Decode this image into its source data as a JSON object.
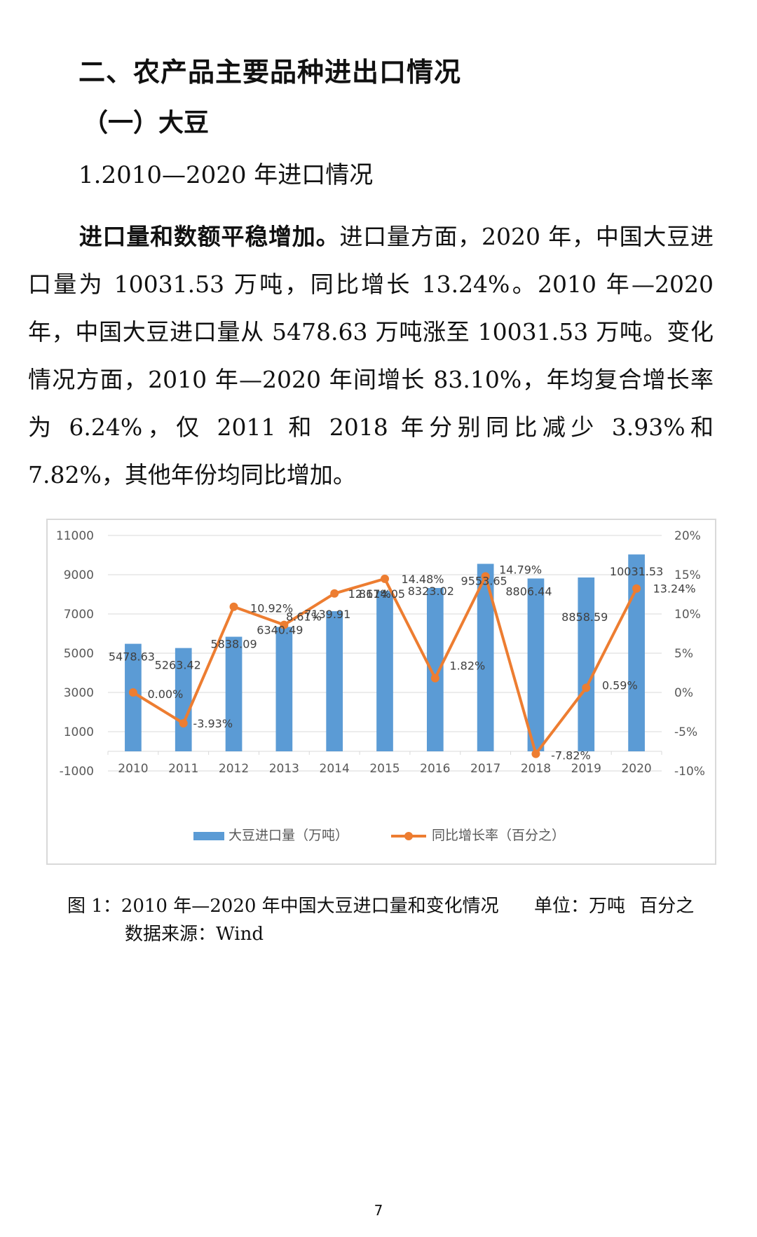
{
  "heading": "二、农产品主要品种进出口情况",
  "subheading": "（一）大豆",
  "section": "1.2010—2020 年进口情况",
  "paragraph": {
    "lead": "进口量和数额平稳增加。",
    "body": "进口量方面，2020 年，中国大豆进口量为 10031.53 万吨，同比增长 13.24%。2010 年—2020 年，中国大豆进口量从 5478.63 万吨涨至 10031.53 万吨。变化情况方面，2010 年—2020 年间增长 83.10%，年均复合增长率为 6.24%，仅 2011 和 2018 年分别同比减少 3.93%和 7.82%，其他年份均同比增加。"
  },
  "chart_data": {
    "type": "bar+line",
    "categories": [
      "2010",
      "2011",
      "2012",
      "2013",
      "2014",
      "2015",
      "2016",
      "2017",
      "2018",
      "2019",
      "2020"
    ],
    "series": [
      {
        "name": "大豆进口量（万吨）",
        "type": "bar",
        "axis": "left",
        "color": "#5b9bd5",
        "values": [
          5478.63,
          5263.42,
          5838.09,
          6340.49,
          7139.91,
          8174.05,
          8323.02,
          9553.65,
          8806.44,
          8858.59,
          10031.53
        ],
        "labels": [
          "5478.63",
          "5263.42",
          "5838.09",
          "6340.49",
          "7139.91",
          "8174.05",
          "8323.02",
          "9553.65",
          "8806.44",
          "8858.59",
          "10031.53"
        ]
      },
      {
        "name": "同比增长率（百分之）",
        "type": "line",
        "axis": "right",
        "color": "#ed7d31",
        "values": [
          0.0,
          -3.93,
          10.92,
          8.61,
          12.61,
          14.48,
          1.82,
          14.79,
          -7.82,
          0.59,
          13.24
        ],
        "labels": [
          "0.00%",
          "-3.93%",
          "10.92%",
          "8.61%",
          "12.61%",
          "14.48%",
          "1.82%",
          "14.79%",
          "-7.82%",
          "0.59%",
          "13.24%"
        ]
      }
    ],
    "y_left": {
      "min": -1000,
      "max": 11000,
      "ticks": [
        "11000",
        "9000",
        "7000",
        "5000",
        "3000",
        "1000",
        "-1000"
      ]
    },
    "y_right": {
      "min": -10,
      "max": 20,
      "ticks": [
        "20%",
        "15%",
        "10%",
        "5%",
        "0%",
        "-5%",
        "-10%"
      ]
    },
    "grid": true,
    "legend_position": "bottom"
  },
  "caption": "图 1：2010 年—2020 年中国大豆进口量和变化情况",
  "caption_unit": "单位：万吨  百分之",
  "source": "数据来源：Wind",
  "page_number": "7"
}
